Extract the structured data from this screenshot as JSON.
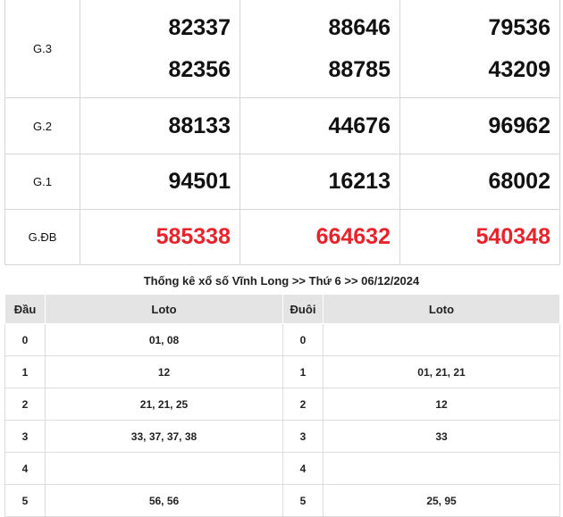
{
  "results": [
    {
      "label": "G.3",
      "values": [
        [
          "82337",
          "82356"
        ],
        [
          "88646",
          "88785"
        ],
        [
          "79536",
          "43209"
        ]
      ],
      "special": false
    },
    {
      "label": "G.2",
      "values": [
        [
          "88133"
        ],
        [
          "44676"
        ],
        [
          "96962"
        ]
      ],
      "special": false
    },
    {
      "label": "G.1",
      "values": [
        [
          "94501"
        ],
        [
          "16213"
        ],
        [
          "68002"
        ]
      ],
      "special": false
    },
    {
      "label": "G.ĐB",
      "values": [
        [
          "585338"
        ],
        [
          "664632"
        ],
        [
          "540348"
        ]
      ],
      "special": true
    }
  ],
  "colors": {
    "special": "#e8232a"
  },
  "stats": {
    "title": "Thống kê xổ số Vĩnh Long >> Thứ 6 >> 06/12/2024",
    "headers": [
      "Đầu",
      "Loto",
      "Đuôi",
      "Loto"
    ],
    "rows": [
      [
        "0",
        "01, 08",
        "0",
        ""
      ],
      [
        "1",
        "12",
        "1",
        "01, 21, 21"
      ],
      [
        "2",
        "21, 21, 25",
        "2",
        "12"
      ],
      [
        "3",
        "33, 37, 37, 38",
        "3",
        "33"
      ],
      [
        "4",
        "",
        "4",
        ""
      ],
      [
        "5",
        "56, 56",
        "5",
        "25, 95"
      ]
    ]
  }
}
